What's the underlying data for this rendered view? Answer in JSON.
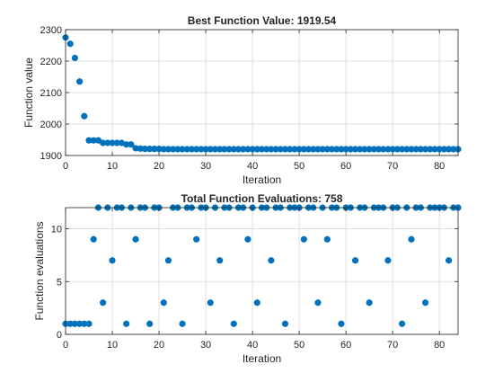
{
  "colors": {
    "marker": "#0072BD",
    "grid": "#DFDFDF",
    "axis": "#262626",
    "background": "#FFFFFF"
  },
  "chart_data": [
    {
      "type": "scatter",
      "title": "Best Function Value: 1919.54",
      "xlabel": "Iteration",
      "ylabel": "Function value",
      "xlim": [
        0,
        84
      ],
      "ylim": [
        1900,
        2300
      ],
      "xticks": [
        0,
        10,
        20,
        30,
        40,
        50,
        60,
        70,
        80
      ],
      "yticks": [
        1900,
        2000,
        2100,
        2200,
        2300
      ],
      "grid": true,
      "x": [
        0,
        1,
        2,
        3,
        4,
        5,
        6,
        7,
        8,
        9,
        10,
        11,
        12,
        13,
        14,
        15,
        16,
        17,
        18,
        19,
        20,
        21,
        22,
        23,
        24,
        25,
        26,
        27,
        28,
        29,
        30,
        31,
        32,
        33,
        34,
        35,
        36,
        37,
        38,
        39,
        40,
        41,
        42,
        43,
        44,
        45,
        46,
        47,
        48,
        49,
        50,
        51,
        52,
        53,
        54,
        55,
        56,
        57,
        58,
        59,
        60,
        61,
        62,
        63,
        64,
        65,
        66,
        67,
        68,
        69,
        70,
        71,
        72,
        73,
        74,
        75,
        76,
        77,
        78,
        79,
        80,
        81,
        82,
        83,
        84
      ],
      "y": [
        2275,
        2255,
        2210,
        2135,
        2025,
        1948,
        1948,
        1948,
        1940,
        1940,
        1940,
        1940,
        1940,
        1935,
        1935,
        1923,
        1922,
        1921,
        1921,
        1921,
        1921,
        1920,
        1920,
        1920,
        1920,
        1920,
        1920,
        1920,
        1920,
        1920,
        1920,
        1920,
        1920,
        1920,
        1920,
        1920,
        1920,
        1920,
        1920,
        1920,
        1920,
        1920,
        1920,
        1920,
        1920,
        1920,
        1920,
        1920,
        1920,
        1920,
        1920,
        1920,
        1920,
        1920,
        1920,
        1920,
        1920,
        1920,
        1920,
        1920,
        1920,
        1920,
        1920,
        1920,
        1920,
        1920,
        1920,
        1920,
        1920,
        1920,
        1920,
        1920,
        1920,
        1920,
        1920,
        1920,
        1920,
        1920,
        1920,
        1920,
        1920,
        1920,
        1920,
        1920,
        1920
      ]
    },
    {
      "type": "scatter",
      "title": "Total Function Evaluations: 758",
      "xlabel": "Iteration",
      "ylabel": "Function evaluations",
      "xlim": [
        0,
        84
      ],
      "ylim": [
        0,
        12
      ],
      "xticks": [
        0,
        10,
        20,
        30,
        40,
        50,
        60,
        70,
        80
      ],
      "yticks": [
        0,
        5,
        10
      ],
      "grid": true,
      "x": [
        0,
        1,
        2,
        3,
        4,
        5,
        6,
        7,
        8,
        9,
        10,
        11,
        12,
        13,
        14,
        15,
        16,
        17,
        18,
        19,
        20,
        21,
        22,
        23,
        24,
        25,
        26,
        27,
        28,
        29,
        30,
        31,
        32,
        33,
        34,
        35,
        36,
        37,
        38,
        39,
        40,
        41,
        42,
        43,
        44,
        45,
        46,
        47,
        48,
        49,
        50,
        51,
        52,
        53,
        54,
        55,
        56,
        57,
        58,
        59,
        60,
        61,
        62,
        63,
        64,
        65,
        66,
        67,
        68,
        69,
        70,
        71,
        72,
        73,
        74,
        75,
        76,
        77,
        78,
        79,
        80,
        81,
        82,
        83,
        84
      ],
      "y": [
        1,
        1,
        1,
        1,
        1,
        1,
        9,
        12,
        3,
        12,
        7,
        12,
        12,
        1,
        12,
        9,
        12,
        12,
        1,
        12,
        12,
        3,
        7,
        12,
        12,
        1,
        12,
        12,
        9,
        12,
        12,
        3,
        12,
        7,
        12,
        12,
        1,
        12,
        12,
        9,
        12,
        3,
        12,
        12,
        7,
        12,
        12,
        1,
        12,
        12,
        12,
        9,
        12,
        12,
        3,
        12,
        9,
        12,
        12,
        1,
        12,
        12,
        7,
        12,
        12,
        3,
        12,
        12,
        12,
        7,
        12,
        12,
        1,
        12,
        9,
        12,
        12,
        3,
        12,
        12,
        12,
        12,
        7,
        12,
        12
      ]
    }
  ]
}
